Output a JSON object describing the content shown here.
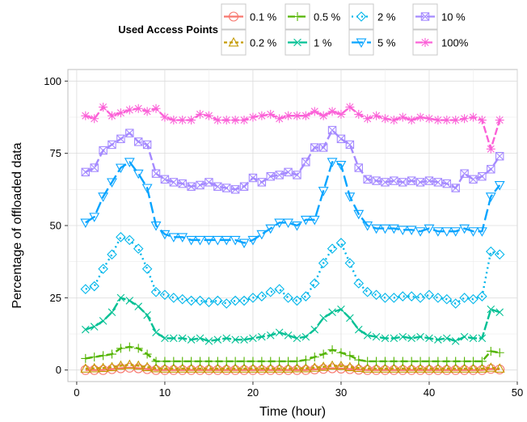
{
  "chart_data": {
    "type": "line",
    "title": "",
    "xlabel": "Time (hour)",
    "ylabel": "Percentage of offloaded data",
    "xlim": [
      -1,
      50
    ],
    "ylim": [
      -4,
      104
    ],
    "xticks": [
      0,
      10,
      20,
      30,
      40,
      50
    ],
    "yticks": [
      0,
      25,
      50,
      75,
      100
    ],
    "grid": true,
    "legend": {
      "title": "Used Access Points",
      "position": "top"
    },
    "x": [
      1,
      2,
      3,
      4,
      5,
      6,
      7,
      8,
      9,
      10,
      11,
      12,
      13,
      14,
      15,
      16,
      17,
      18,
      19,
      20,
      21,
      22,
      23,
      24,
      25,
      26,
      27,
      28,
      29,
      30,
      31,
      32,
      33,
      34,
      35,
      36,
      37,
      38,
      39,
      40,
      41,
      42,
      43,
      44,
      45,
      46,
      47,
      48
    ],
    "series": [
      {
        "name": "0.1 %",
        "color": "#F8766D",
        "marker": "circle",
        "dash": "solid",
        "values": [
          0,
          0,
          0,
          0.3,
          0.6,
          0.8,
          0.6,
          0.3,
          0,
          0,
          0,
          0,
          0,
          0,
          0,
          0,
          0,
          0,
          0,
          0,
          0,
          0,
          0,
          0,
          0,
          0,
          0.2,
          0.4,
          0.6,
          0.5,
          0.3,
          0.1,
          0,
          0,
          0,
          0,
          0,
          0,
          0,
          0,
          0,
          0,
          0,
          0,
          0,
          0,
          0.4,
          0.2
        ]
      },
      {
        "name": "0.2 %",
        "color": "#C49A00",
        "marker": "triangle",
        "dash": "4,3",
        "values": [
          0.5,
          0.6,
          0.7,
          1.0,
          1.5,
          1.8,
          1.5,
          1.0,
          0.6,
          0.5,
          0.5,
          0.5,
          0.5,
          0.5,
          0.5,
          0.5,
          0.5,
          0.5,
          0.5,
          0.5,
          0.5,
          0.5,
          0.5,
          0.5,
          0.6,
          0.6,
          0.8,
          1.1,
          1.5,
          1.4,
          1.0,
          0.7,
          0.5,
          0.5,
          0.5,
          0.5,
          0.5,
          0.5,
          0.5,
          0.5,
          0.5,
          0.5,
          0.5,
          0.5,
          0.5,
          0.5,
          0.8,
          0.5
        ]
      },
      {
        "name": "0.5 %",
        "color": "#53B400",
        "marker": "plus",
        "dash": "9,4",
        "values": [
          4,
          4.5,
          5,
          5.5,
          7.5,
          8,
          7.5,
          5.5,
          3,
          3,
          3,
          3,
          3,
          3,
          3,
          3,
          3,
          3,
          3,
          3,
          3,
          3,
          3,
          3,
          3,
          3.5,
          4.5,
          5.5,
          7,
          6,
          5,
          3.5,
          3,
          3,
          3,
          3,
          3,
          3,
          3,
          3,
          3,
          3,
          3,
          3,
          3,
          3,
          6.5,
          6
        ]
      },
      {
        "name": "1 %",
        "color": "#00C094",
        "marker": "cross",
        "dash": "11,3",
        "values": [
          14,
          15,
          17,
          20,
          25,
          24,
          22,
          19,
          13,
          11,
          11,
          11,
          10.5,
          11,
          10,
          10.5,
          11,
          10.5,
          10.5,
          11,
          11.5,
          12,
          13,
          12,
          11,
          11.5,
          14,
          18,
          20,
          21,
          18,
          14,
          12,
          11.5,
          11,
          11,
          11.5,
          11,
          11.5,
          11,
          10.5,
          11,
          10,
          11.5,
          11,
          11,
          21,
          20
        ]
      },
      {
        "name": "2 %",
        "color": "#00B6EB",
        "marker": "diamond",
        "dash": "2,4",
        "values": [
          28,
          29,
          35,
          40,
          46,
          45,
          42,
          35,
          27,
          26,
          25,
          24.5,
          24,
          24,
          23.5,
          24,
          23,
          24,
          24,
          25,
          25.5,
          27,
          28,
          25,
          24,
          25.5,
          30,
          37,
          42,
          44,
          37,
          30,
          27,
          26,
          25,
          25,
          25.5,
          25.5,
          25,
          26,
          25,
          24.5,
          23,
          25,
          24.5,
          25.5,
          41,
          40
        ]
      },
      {
        "name": "5 %",
        "color": "#06A4FF",
        "marker": "triangle-down",
        "dash": "14,5",
        "values": [
          51,
          53,
          60,
          65,
          70,
          72,
          68,
          63,
          50,
          47,
          46,
          46,
          45,
          45,
          45,
          45,
          45,
          45,
          44,
          45,
          47,
          49,
          51,
          51,
          50,
          52,
          52,
          62,
          72,
          71,
          60,
          54,
          50,
          49,
          49,
          49,
          48.5,
          48.5,
          48,
          49,
          48,
          48,
          48,
          49,
          48,
          48,
          60,
          64
        ]
      },
      {
        "name": "10 %",
        "color": "#A58AFF",
        "marker": "boxcross",
        "dash": "10,4",
        "values": [
          68.5,
          70,
          76,
          78,
          80,
          82,
          79,
          78,
          68,
          66,
          65,
          64.5,
          63.5,
          64,
          65,
          63.5,
          63,
          62.5,
          63.5,
          66.5,
          65,
          67,
          67.5,
          68.5,
          67.5,
          72,
          77,
          77,
          83,
          80,
          78,
          70,
          66,
          65.5,
          65,
          65.5,
          65,
          65.5,
          65,
          65.5,
          65,
          64.5,
          63,
          68,
          66,
          67,
          69.5,
          74
        ]
      },
      {
        "name": "100%",
        "color": "#FB61D7",
        "marker": "star",
        "dash": "9,3",
        "values": [
          88,
          87,
          91,
          88,
          89,
          90,
          90.5,
          89.5,
          90.5,
          87.5,
          86.5,
          86.5,
          86.5,
          88.5,
          88,
          86.5,
          86.5,
          86.5,
          86.5,
          87.5,
          88,
          88.5,
          87,
          88,
          88,
          88,
          89.5,
          88,
          89.5,
          88.5,
          91,
          88.5,
          87,
          88,
          87,
          86.5,
          87.5,
          86.5,
          87.5,
          87,
          86.5,
          86.5,
          86.5,
          87,
          87.5,
          86.5,
          76.5,
          86.5
        ]
      }
    ]
  }
}
